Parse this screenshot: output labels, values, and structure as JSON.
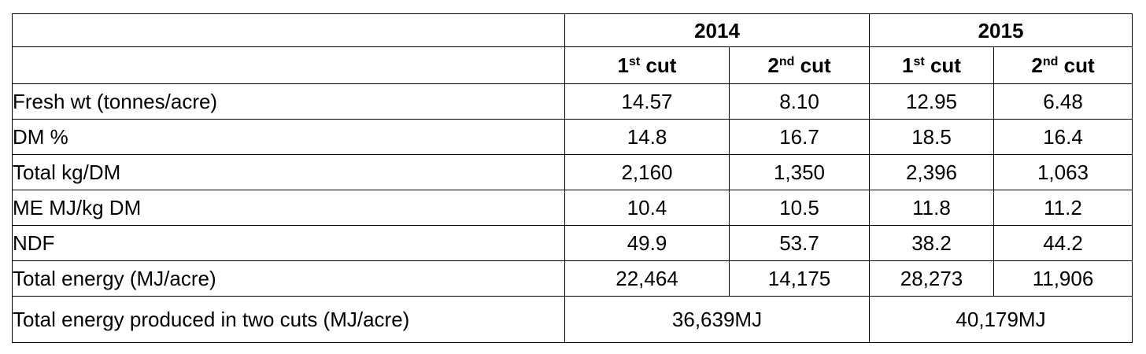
{
  "table": {
    "years": [
      "2014",
      "2015"
    ],
    "cuts": [
      {
        "num": "1",
        "sup": "st",
        "word": " cut"
      },
      {
        "num": "2",
        "sup": "nd",
        "word": " cut"
      },
      {
        "num": "1",
        "sup": "st",
        "word": " cut"
      },
      {
        "num": "2",
        "sup": "nd",
        "word": " cut"
      }
    ],
    "rows": [
      {
        "label": "Fresh wt (tonnes/acre)",
        "values": [
          "14.57",
          "8.10",
          "12.95",
          "6.48"
        ]
      },
      {
        "label": "DM %",
        "values": [
          "14.8",
          "16.7",
          "18.5",
          "16.4"
        ]
      },
      {
        "label": "Total kg/DM",
        "values": [
          "2,160",
          "1,350",
          "2,396",
          "1,063"
        ]
      },
      {
        "label": "ME MJ/kg DM",
        "values": [
          "10.4",
          "10.5",
          "11.8",
          "11.2"
        ]
      },
      {
        "label": "NDF",
        "values": [
          "49.9",
          "53.7",
          "38.2",
          "44.2"
        ]
      },
      {
        "label": "Total energy (MJ/acre)",
        "values": [
          "22,464",
          "14,175",
          "28,273",
          "11,906"
        ]
      }
    ],
    "total_row": {
      "label": "Total energy produced in two cuts (MJ/acre)",
      "values": [
        "36,639MJ",
        "40,179MJ"
      ]
    }
  }
}
